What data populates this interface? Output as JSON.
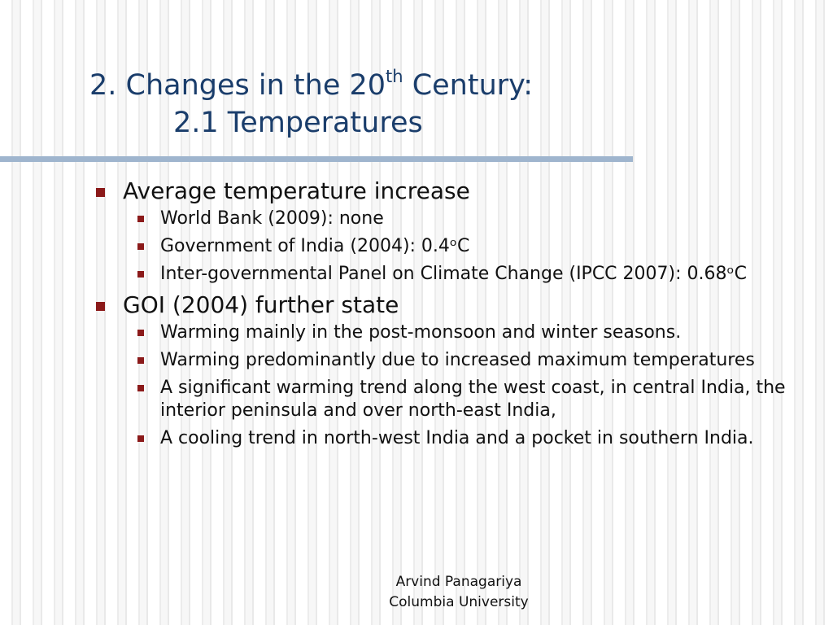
{
  "title": {
    "line1_prefix": "2. Changes in the 20",
    "line1_sup": "th",
    "line1_suffix": " Century:",
    "line2": "2.1 Temperatures"
  },
  "bullets": [
    {
      "text": "Average temperature increase",
      "sub": [
        "World Bank (2009): none",
        "Government of India (2004): 0.4ᵒC",
        "Inter-governmental Panel on Climate Change (IPCC 2007): 0.68ᵒC"
      ]
    },
    {
      "text": "GOI (2004) further state",
      "sub": [
        "Warming mainly in the post-monsoon and winter seasons.",
        "Warming predominantly due to increased maximum temperatures",
        "A significant warming trend along the west coast, in central India, the interior peninsula and over north-east India,",
        "A cooling trend in north-west India and a pocket in southern India."
      ]
    }
  ],
  "footer": {
    "name": "Arvind Panagariya",
    "affiliation": "Columbia University"
  },
  "colors": {
    "title": "#1a3d6b",
    "bullet": "#8b1a1a",
    "rule": "#9fb5ce"
  }
}
